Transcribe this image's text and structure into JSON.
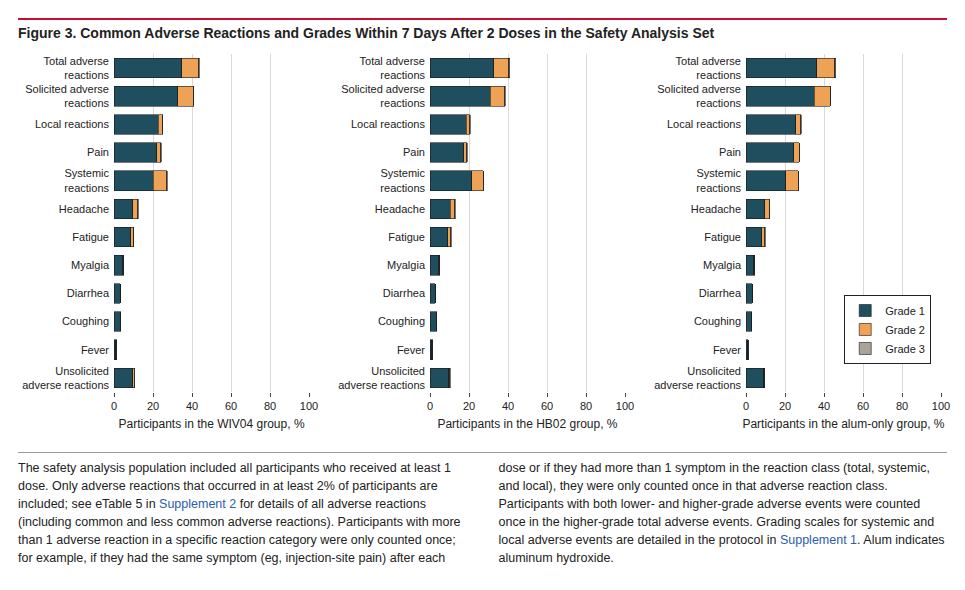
{
  "title": "Figure 3. Common Adverse Reactions and Grades Within 7 Days After 2 Doses in the Safety Analysis Set",
  "footnote": [
    {
      "text": "The safety analysis population included all participants who received at least 1 dose. Only adverse reactions that occurred in at least 2% of participants are included; see eTable 5 in "
    },
    {
      "text": "Supplement 2",
      "link": true
    },
    {
      "text": " for details of all adverse reactions (including common and less common adverse reactions). Participants with more than 1 adverse reaction in a specific reaction category were only counted once; for example, if they had the same symptom (eg, injection-site pain) after each dose or if they had more than 1 symptom in the reaction class (total, systemic, and local), they were only counted once in that adverse reaction class. Participants with both lower- and higher-grade adverse events were counted once in the higher-grade total adverse events. Grading scales for systemic and local adverse events are detailed in the protocol in "
    },
    {
      "text": "Supplement 1",
      "link": true
    },
    {
      "text": ". Alum indicates aluminum hydroxide."
    }
  ],
  "chart_data": [
    {
      "type": "bar",
      "orientation": "horizontal",
      "stacked": true,
      "grid": true,
      "xlabel": "Participants in the WIV04 group, %",
      "categories": [
        "Total adverse\nreactions",
        "Solicited adverse\nreactions",
        "Local reactions",
        "Pain",
        "Systemic\nreactions",
        "Headache",
        "Fatigue",
        "Myalgia",
        "Diarrhea",
        "Coughing",
        "Fever",
        "Unsolicited\nadverse reactions"
      ],
      "series": [
        {
          "name": "Grade 1",
          "color": "#1f4e5f",
          "values": [
            34.8,
            32.8,
            22.6,
            22.0,
            20.0,
            9.7,
            8.7,
            4.6,
            3.1,
            3.1,
            1.0,
            9.7
          ]
        },
        {
          "name": "Grade 2",
          "color": "#eea255",
          "values": [
            8.6,
            8.0,
            2.4,
            2.0,
            7.0,
            2.6,
            1.4,
            0.4,
            0.2,
            0.3,
            0.3,
            0.8
          ]
        },
        {
          "name": "Grade 3",
          "color": "#a9a398",
          "values": [
            0.3,
            0.2,
            0.1,
            0.1,
            0.2,
            0.1,
            0.1,
            0.0,
            0.0,
            0.0,
            0.0,
            0.1
          ]
        }
      ],
      "xlim": [
        0,
        100
      ],
      "xticks": [
        0,
        20,
        40,
        60,
        80,
        100
      ]
    },
    {
      "type": "bar",
      "orientation": "horizontal",
      "stacked": true,
      "grid": true,
      "xlabel": "Participants in the HB02 group, %",
      "categories": [
        "Total adverse\nreactions",
        "Solicited adverse\nreactions",
        "Local reactions",
        "Pain",
        "Systemic\nreactions",
        "Headache",
        "Fatigue",
        "Myalgia",
        "Diarrhea",
        "Coughing",
        "Fever",
        "Unsolicited\nadverse reactions"
      ],
      "series": [
        {
          "name": "Grade 1",
          "color": "#1f4e5f",
          "values": [
            32.8,
            30.8,
            18.5,
            17.4,
            21.5,
            10.3,
            9.2,
            4.6,
            2.6,
            3.1,
            1.0,
            9.7
          ]
        },
        {
          "name": "Grade 2",
          "color": "#eea255",
          "values": [
            7.7,
            7.5,
            2.0,
            1.5,
            5.7,
            2.5,
            1.5,
            0.5,
            0.2,
            0.3,
            0.3,
            0.5
          ]
        },
        {
          "name": "Grade 3",
          "color": "#a9a398",
          "values": [
            0.3,
            0.2,
            0.1,
            0.1,
            0.2,
            0.1,
            0.1,
            0.0,
            0.0,
            0.0,
            0.0,
            0.1
          ]
        }
      ],
      "xlim": [
        0,
        100
      ],
      "xticks": [
        0,
        20,
        40,
        60,
        80,
        100
      ]
    },
    {
      "type": "bar",
      "orientation": "horizontal",
      "stacked": true,
      "grid": true,
      "legend": "right",
      "xlabel": "Participants in the alum-only group, %",
      "categories": [
        "Total adverse\nreactions",
        "Solicited adverse\nreactions",
        "Local reactions",
        "Pain",
        "Systemic\nreactions",
        "Headache",
        "Fatigue",
        "Myalgia",
        "Diarrhea",
        "Coughing",
        "Fever",
        "Unsolicited\nadverse reactions"
      ],
      "series": [
        {
          "name": "Grade 1",
          "color": "#1f4e5f",
          "values": [
            36.4,
            34.9,
            25.6,
            24.6,
            20.5,
            9.7,
            8.2,
            4.1,
            3.1,
            2.6,
            1.0,
            9.2
          ]
        },
        {
          "name": "Grade 2",
          "color": "#eea255",
          "values": [
            9.2,
            8.2,
            2.6,
            2.6,
            6.2,
            2.1,
            1.5,
            0.4,
            0.2,
            0.4,
            0.2,
            0.4
          ]
        },
        {
          "name": "Grade 3",
          "color": "#a9a398",
          "values": [
            0.3,
            0.2,
            0.1,
            0.1,
            0.2,
            0.1,
            0.1,
            0.0,
            0.0,
            0.0,
            0.0,
            0.1
          ]
        }
      ],
      "xlim": [
        0,
        100
      ],
      "xticks": [
        0,
        20,
        40,
        60,
        80,
        100
      ]
    }
  ]
}
